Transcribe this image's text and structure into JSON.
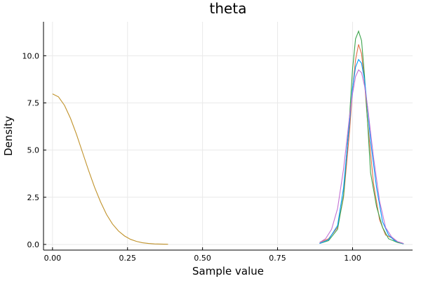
{
  "chart_data": {
    "type": "line",
    "title": "theta",
    "xlabel": "Sample value",
    "ylabel": "Density",
    "xlim": [
      -0.03,
      1.2
    ],
    "ylim": [
      -0.3,
      11.8
    ],
    "xticks": [
      0.0,
      0.25,
      0.5,
      0.75,
      1.0
    ],
    "xtick_labels": [
      "0.00",
      "0.25",
      "0.50",
      "0.75",
      "1.00"
    ],
    "yticks": [
      0.0,
      2.5,
      5.0,
      7.5,
      10.0
    ],
    "ytick_labels": [
      "0.0",
      "2.5",
      "5.0",
      "7.5",
      "10.0"
    ],
    "grid": true,
    "legend": "none",
    "series": [
      {
        "color": "#c0922a",
        "x": [
          0.0,
          0.02,
          0.04,
          0.06,
          0.08,
          0.1,
          0.12,
          0.14,
          0.16,
          0.18,
          0.2,
          0.22,
          0.24,
          0.26,
          0.28,
          0.3,
          0.32,
          0.34,
          0.36,
          0.385
        ],
        "y": [
          7.98,
          7.82,
          7.37,
          6.68,
          5.83,
          4.88,
          3.93,
          3.04,
          2.26,
          1.59,
          1.08,
          0.71,
          0.45,
          0.27,
          0.16,
          0.09,
          0.05,
          0.03,
          0.02,
          0.01
        ]
      },
      {
        "color": "#e26f46",
        "x": [
          0.89,
          0.92,
          0.95,
          0.97,
          0.99,
          1.0,
          1.01,
          1.02,
          1.03,
          1.04,
          1.05,
          1.07,
          1.09,
          1.11,
          1.13,
          1.15,
          1.17
        ],
        "y": [
          0.1,
          0.3,
          0.9,
          2.5,
          6.0,
          8.2,
          9.8,
          10.6,
          10.1,
          8.6,
          6.5,
          3.2,
          1.3,
          0.5,
          0.35,
          0.15,
          0.05
        ]
      },
      {
        "color": "#3da44d",
        "x": [
          0.89,
          0.92,
          0.95,
          0.97,
          0.99,
          1.0,
          1.01,
          1.02,
          1.03,
          1.04,
          1.05,
          1.06,
          1.08,
          1.1,
          1.12,
          1.15,
          1.17
        ],
        "y": [
          0.05,
          0.2,
          0.8,
          2.6,
          6.8,
          9.3,
          10.9,
          11.3,
          10.8,
          8.9,
          6.5,
          3.8,
          2.0,
          0.9,
          0.3,
          0.1,
          0.03
        ]
      },
      {
        "color": "#009af9",
        "x": [
          0.89,
          0.92,
          0.95,
          0.97,
          0.99,
          1.0,
          1.01,
          1.02,
          1.03,
          1.04,
          1.05,
          1.06,
          1.08,
          1.1,
          1.12,
          1.14,
          1.17
        ],
        "y": [
          0.05,
          0.25,
          1.0,
          3.0,
          6.5,
          8.3,
          9.4,
          9.8,
          9.6,
          8.7,
          7.2,
          5.5,
          3.0,
          1.2,
          0.5,
          0.2,
          0.03
        ]
      },
      {
        "color": "#c271d2",
        "x": [
          0.89,
          0.91,
          0.93,
          0.95,
          0.97,
          0.99,
          1.0,
          1.01,
          1.02,
          1.03,
          1.04,
          1.05,
          1.07,
          1.09,
          1.11,
          1.13,
          1.15,
          1.17
        ],
        "y": [
          0.1,
          0.3,
          0.8,
          1.9,
          4.0,
          6.8,
          8.0,
          8.9,
          9.25,
          9.1,
          8.4,
          7.3,
          4.6,
          2.3,
          0.9,
          0.4,
          0.15,
          0.05
        ]
      }
    ]
  }
}
